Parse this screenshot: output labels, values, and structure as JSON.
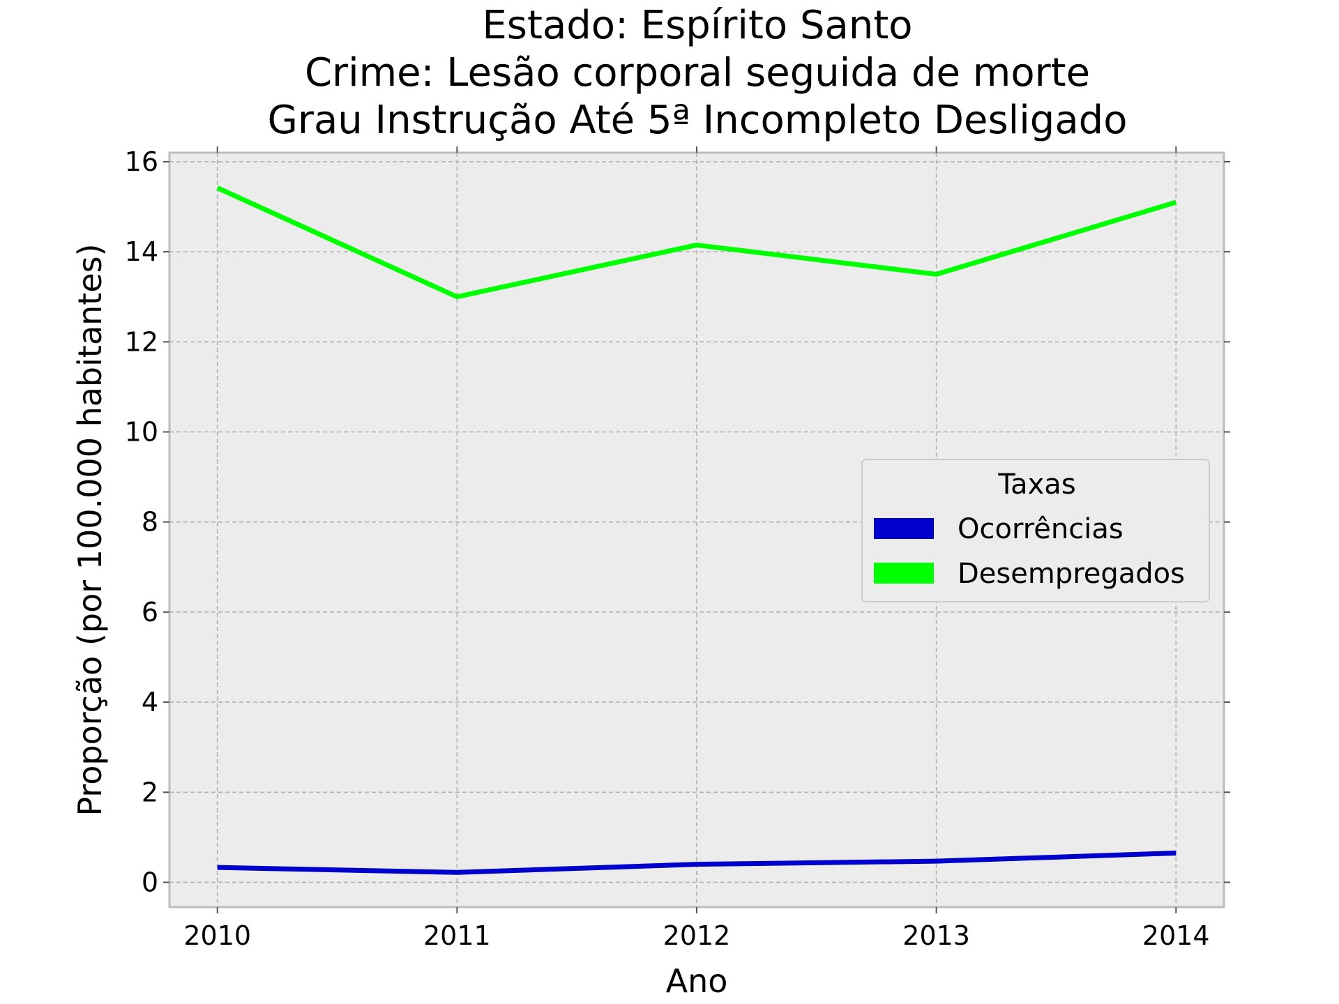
{
  "chart_data": {
    "type": "line",
    "title": [
      "Estado: Espírito Santo",
      "Crime: Lesão corporal seguida de morte",
      "Grau Instrução  Até 5ª Incompleto   Desligado"
    ],
    "xlabel": "Ano",
    "ylabel": "Proporção (por 100.000 habitantes)",
    "x": [
      2010,
      2011,
      2012,
      2013,
      2014
    ],
    "xticks": [
      "2010",
      "2011",
      "2012",
      "2013",
      "2014"
    ],
    "yticks": [
      "0",
      "2",
      "4",
      "6",
      "8",
      "10",
      "12",
      "14",
      "16"
    ],
    "xlim": [
      2009.8,
      2014.2
    ],
    "ylim": [
      -0.55,
      16.2
    ],
    "grid": true,
    "background": "#ececec",
    "legend": {
      "title": "Taxas",
      "placement": "center-right"
    },
    "series": [
      {
        "name": "Ocorrências",
        "color": "#0000cc",
        "values": [
          0.33,
          0.22,
          0.4,
          0.47,
          0.65
        ]
      },
      {
        "name": "Desempregados",
        "color": "#00ff00",
        "values": [
          15.42,
          13.0,
          14.15,
          13.5,
          15.1
        ]
      }
    ]
  }
}
